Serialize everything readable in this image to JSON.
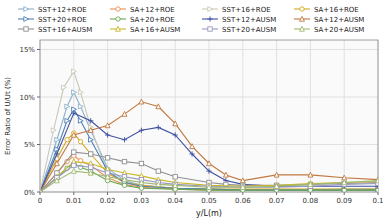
{
  "chart_data": {
    "type": "line",
    "xlabel": "y/L(m)",
    "ylabel": "Error Ratio of U/Ut (%)",
    "xlim": [
      0,
      0.1
    ],
    "ylim": [
      0,
      0.16
    ],
    "xticks": [
      0,
      0.01,
      0.02,
      0.03,
      0.04,
      0.05,
      0.06,
      0.07,
      0.08,
      0.09,
      0.1
    ],
    "yticks": [
      {
        "value": 0.0,
        "label": "0%"
      },
      {
        "value": 0.05,
        "label": "5%"
      },
      {
        "value": 0.1,
        "label": "10%"
      },
      {
        "value": 0.15,
        "label": "15%"
      }
    ],
    "grid": true,
    "legend": "top",
    "series": [
      {
        "name": "SST+12+ROE",
        "color": "#8ab0cc",
        "marker": "triangle-right",
        "x": [
          0,
          0.005,
          0.008,
          0.01,
          0.012,
          0.015,
          0.02,
          0.025,
          0.03,
          0.04,
          0.05,
          0.06,
          0.07,
          0.08,
          0.09,
          0.1
        ],
        "values": [
          0,
          0.055,
          0.09,
          0.105,
          0.09,
          0.065,
          0.025,
          0.012,
          0.007,
          0.004,
          0.003,
          0.002,
          0.002,
          0.002,
          0.003,
          0.003
        ]
      },
      {
        "name": "SA+12+ROE",
        "color": "#e89050",
        "marker": "circle",
        "x": [
          0,
          0.005,
          0.008,
          0.01,
          0.012,
          0.015,
          0.02,
          0.025,
          0.03,
          0.04,
          0.05,
          0.06,
          0.07,
          0.08,
          0.09,
          0.1
        ],
        "values": [
          0,
          0.02,
          0.032,
          0.038,
          0.033,
          0.028,
          0.015,
          0.008,
          0.005,
          0.003,
          0.002,
          0.002,
          0.002,
          0.002,
          0.002,
          0.002
        ]
      },
      {
        "name": "SST+16+ROE",
        "color": "#c8c8b8",
        "marker": "triangle-right",
        "x": [
          0,
          0.004,
          0.007,
          0.01,
          0.012,
          0.015,
          0.02,
          0.025,
          0.03,
          0.04,
          0.05,
          0.06,
          0.07,
          0.08,
          0.09,
          0.1
        ],
        "values": [
          0,
          0.065,
          0.11,
          0.127,
          0.105,
          0.068,
          0.02,
          0.01,
          0.006,
          0.004,
          0.003,
          0.002,
          0.002,
          0.002,
          0.002,
          0.003
        ]
      },
      {
        "name": "SA+16+ROE",
        "color": "#d4a820",
        "marker": "circle",
        "x": [
          0,
          0.005,
          0.008,
          0.01,
          0.012,
          0.015,
          0.02,
          0.025,
          0.03,
          0.04,
          0.05,
          0.06,
          0.07,
          0.08,
          0.09,
          0.1
        ],
        "values": [
          0,
          0.035,
          0.055,
          0.062,
          0.053,
          0.04,
          0.02,
          0.01,
          0.007,
          0.004,
          0.003,
          0.003,
          0.003,
          0.003,
          0.003,
          0.003
        ]
      },
      {
        "name": "SST+20+ROE",
        "color": "#5080b8",
        "marker": "triangle-right",
        "x": [
          0,
          0.005,
          0.008,
          0.01,
          0.012,
          0.015,
          0.02,
          0.025,
          0.03,
          0.04,
          0.05,
          0.06,
          0.07,
          0.08,
          0.09,
          0.1
        ],
        "values": [
          0,
          0.045,
          0.075,
          0.087,
          0.075,
          0.055,
          0.022,
          0.01,
          0.006,
          0.004,
          0.003,
          0.002,
          0.002,
          0.002,
          0.002,
          0.002
        ]
      },
      {
        "name": "SA+20+ROE",
        "color": "#68a850",
        "marker": "circle",
        "x": [
          0,
          0.005,
          0.008,
          0.01,
          0.012,
          0.015,
          0.02,
          0.025,
          0.03,
          0.04,
          0.05,
          0.06,
          0.07,
          0.08,
          0.09,
          0.1
        ],
        "values": [
          0,
          0.015,
          0.025,
          0.03,
          0.026,
          0.022,
          0.012,
          0.007,
          0.004,
          0.003,
          0.002,
          0.002,
          0.002,
          0.002,
          0.002,
          0.002
        ]
      },
      {
        "name": "SST+12+AUSM",
        "color": "#4050a0",
        "marker": "plus",
        "x": [
          0,
          0.005,
          0.01,
          0.015,
          0.02,
          0.025,
          0.03,
          0.035,
          0.04,
          0.045,
          0.05,
          0.055,
          0.06,
          0.07,
          0.08,
          0.09,
          0.1
        ],
        "values": [
          0,
          0.04,
          0.083,
          0.075,
          0.06,
          0.055,
          0.065,
          0.068,
          0.06,
          0.04,
          0.022,
          0.012,
          0.008,
          0.006,
          0.006,
          0.006,
          0.006
        ]
      },
      {
        "name": "SA+12+AUSM",
        "color": "#c07840",
        "marker": "triangle-up",
        "x": [
          0,
          0.005,
          0.01,
          0.015,
          0.02,
          0.025,
          0.03,
          0.035,
          0.04,
          0.045,
          0.05,
          0.055,
          0.06,
          0.07,
          0.08,
          0.09,
          0.1
        ],
        "values": [
          0,
          0.03,
          0.06,
          0.065,
          0.07,
          0.082,
          0.095,
          0.09,
          0.072,
          0.048,
          0.03,
          0.018,
          0.012,
          0.018,
          0.018,
          0.015,
          0.013
        ]
      },
      {
        "name": "SST+16+AUSM",
        "color": "#909090",
        "marker": "square",
        "x": [
          0,
          0.005,
          0.01,
          0.015,
          0.02,
          0.025,
          0.03,
          0.035,
          0.04,
          0.05,
          0.055,
          0.06,
          0.07,
          0.08,
          0.09,
          0.1
        ],
        "values": [
          0,
          0.02,
          0.042,
          0.04,
          0.036,
          0.032,
          0.03,
          0.022,
          0.016,
          0.01,
          0.008,
          0.007,
          0.007,
          0.008,
          0.009,
          0.01
        ]
      },
      {
        "name": "SA+16+AUSM",
        "color": "#c8b828",
        "marker": "triangle-up",
        "x": [
          0,
          0.005,
          0.01,
          0.015,
          0.02,
          0.025,
          0.03,
          0.035,
          0.04,
          0.05,
          0.06,
          0.07,
          0.08,
          0.09,
          0.1
        ],
        "values": [
          0,
          0.016,
          0.032,
          0.03,
          0.024,
          0.02,
          0.017,
          0.013,
          0.01,
          0.007,
          0.006,
          0.007,
          0.009,
          0.01,
          0.011
        ]
      },
      {
        "name": "SST+20+AUSM",
        "color": "#9898c0",
        "marker": "square",
        "x": [
          0,
          0.005,
          0.01,
          0.015,
          0.02,
          0.025,
          0.03,
          0.035,
          0.04,
          0.05,
          0.06,
          0.07,
          0.08,
          0.09,
          0.1
        ],
        "values": [
          0,
          0.015,
          0.028,
          0.026,
          0.02,
          0.016,
          0.013,
          0.01,
          0.008,
          0.006,
          0.005,
          0.005,
          0.006,
          0.008,
          0.009
        ]
      },
      {
        "name": "SA+20+AUSM",
        "color": "#a0b870",
        "marker": "triangle-up",
        "x": [
          0,
          0.005,
          0.01,
          0.015,
          0.02,
          0.025,
          0.03,
          0.035,
          0.04,
          0.05,
          0.06,
          0.07,
          0.08,
          0.09,
          0.1
        ],
        "values": [
          0,
          0.012,
          0.022,
          0.02,
          0.016,
          0.013,
          0.01,
          0.008,
          0.007,
          0.005,
          0.005,
          0.006,
          0.008,
          0.01,
          0.012
        ]
      }
    ]
  }
}
